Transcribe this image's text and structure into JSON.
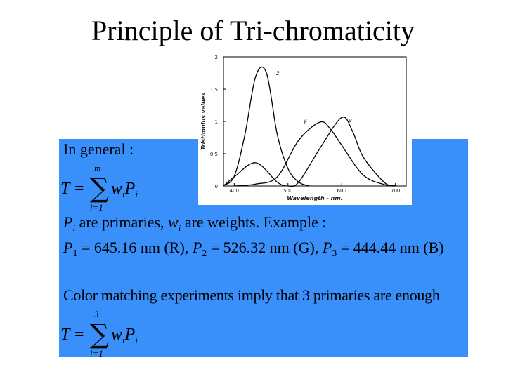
{
  "title": "Principle of Tri-chromaticity",
  "panel": {
    "in_general": "In general :",
    "formula1": {
      "lhs": "T",
      "eq": "=",
      "sigma": "∑",
      "upper": "m",
      "lower": "i=1",
      "w": "w",
      "P": "P",
      "idx": "i"
    },
    "primaries_text": {
      "P": "P",
      "i1": "i",
      "part1": " are primaries, ",
      "w": "w",
      "i2": "i",
      "part2": " are weights. Example :"
    },
    "example": {
      "p1": "P",
      "p1_sub": "1",
      "p1_val": " = 645.16 nm (R), ",
      "p2": "P",
      "p2_sub": "2",
      "p2_val": " = 526.32 nm (G), ",
      "p3": "P",
      "p3_sub": "3",
      "p3_val": " = 444.44 nm (B)"
    },
    "color_matching": "Color matching experiments imply that 3 primaries are enough",
    "formula2": {
      "lhs": "T",
      "eq": "=",
      "sigma": "∑",
      "upper": "3",
      "lower": "i=1",
      "w": "w",
      "P": "P",
      "idx": "i"
    }
  },
  "colors": {
    "panel": "#3a90fb",
    "curves": "#000000"
  },
  "chart_data": {
    "type": "line",
    "ylabel": "Tristimulus values",
    "xlabel": "Wavelength - nm.",
    "x_ticks": [
      "400",
      "500",
      "600",
      "700"
    ],
    "y_ticks": [
      "0",
      "0.5",
      "1",
      "1.5",
      "2"
    ],
    "xlim": [
      380,
      720
    ],
    "ylim": [
      0,
      2
    ],
    "series": [
      {
        "name": "z̄",
        "x": [
          380,
          400,
          420,
          440,
          460,
          480,
          500,
          520,
          540
        ],
        "y": [
          0.01,
          0.15,
          0.8,
          1.7,
          1.75,
          0.8,
          0.27,
          0.06,
          0.0
        ]
      },
      {
        "name": "ȳ",
        "x": [
          400,
          440,
          480,
          520,
          560,
          580,
          600,
          640,
          680,
          700
        ],
        "y": [
          0.0,
          0.03,
          0.14,
          0.71,
          0.99,
          0.87,
          0.63,
          0.17,
          0.02,
          0.0
        ]
      },
      {
        "name": "x̄",
        "x": [
          380,
          400,
          440,
          480,
          500,
          520,
          560,
          600,
          620,
          640,
          680,
          700
        ],
        "y": [
          0.0,
          0.14,
          0.36,
          0.06,
          0.0,
          0.06,
          0.59,
          1.06,
          0.85,
          0.45,
          0.05,
          0.01
        ]
      }
    ]
  }
}
